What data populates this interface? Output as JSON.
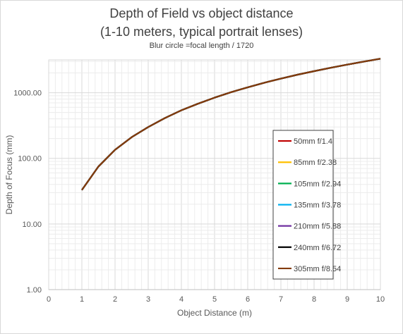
{
  "chart_data": {
    "type": "line",
    "title": "Depth of Field vs object distance",
    "title_line2": "(1-10 meters, typical portrait lenses)",
    "subtitle": "Blur circle =focal length / 1720",
    "xlabel": "Object Distance (m)",
    "ylabel": "Depth of Focus (mm)",
    "xlim": [
      0,
      10
    ],
    "ylim": [
      1,
      3162
    ],
    "yscale": "log",
    "x_ticks": [
      "0",
      "1",
      "2",
      "3",
      "4",
      "5",
      "6",
      "7",
      "8",
      "9",
      "10"
    ],
    "y_ticks": [
      "1.00",
      "10.00",
      "100.00",
      "1000.00"
    ],
    "grid": true,
    "legend_position": "right",
    "x": [
      1,
      1.5,
      2,
      2.5,
      3,
      3.5,
      4,
      4.5,
      5,
      5.5,
      6,
      6.5,
      7,
      7.5,
      8,
      8.5,
      9,
      9.5,
      10
    ],
    "series": [
      {
        "name": "50mm f/1.4",
        "color": "#c00000",
        "values": [
          33,
          75,
          135,
          210,
          300,
          410,
          540,
          680,
          840,
          1020,
          1210,
          1420,
          1640,
          1880,
          2130,
          2400,
          2680,
          2980,
          3300
        ]
      },
      {
        "name": "85mm f/2.38",
        "color": "#ffc000",
        "values": [
          33,
          75,
          135,
          210,
          300,
          410,
          540,
          680,
          840,
          1020,
          1210,
          1420,
          1640,
          1880,
          2130,
          2400,
          2680,
          2980,
          3300
        ]
      },
      {
        "name": "105mm f/2.94",
        "color": "#00b050",
        "values": [
          33,
          75,
          135,
          210,
          300,
          410,
          540,
          680,
          840,
          1020,
          1210,
          1420,
          1640,
          1880,
          2130,
          2400,
          2680,
          2980,
          3300
        ]
      },
      {
        "name": "135mm f/3.78",
        "color": "#00b0f0",
        "values": [
          33,
          75,
          135,
          210,
          300,
          410,
          540,
          680,
          840,
          1020,
          1210,
          1420,
          1640,
          1880,
          2130,
          2400,
          2680,
          2980,
          3300
        ]
      },
      {
        "name": "210mm f/5.88",
        "color": "#7030a0",
        "values": [
          33,
          75,
          135,
          210,
          300,
          410,
          540,
          680,
          840,
          1020,
          1210,
          1420,
          1640,
          1880,
          2130,
          2400,
          2680,
          2980,
          3300
        ]
      },
      {
        "name": "240mm f/6.72",
        "color": "#000000",
        "values": [
          33,
          75,
          135,
          210,
          300,
          410,
          540,
          680,
          840,
          1020,
          1210,
          1420,
          1640,
          1880,
          2130,
          2400,
          2680,
          2980,
          3300
        ]
      },
      {
        "name": "305mm f/8.54",
        "color": "#843c0c",
        "values": [
          33,
          75,
          135,
          210,
          300,
          410,
          540,
          680,
          840,
          1020,
          1210,
          1420,
          1640,
          1880,
          2130,
          2400,
          2680,
          2980,
          3300
        ]
      }
    ]
  }
}
